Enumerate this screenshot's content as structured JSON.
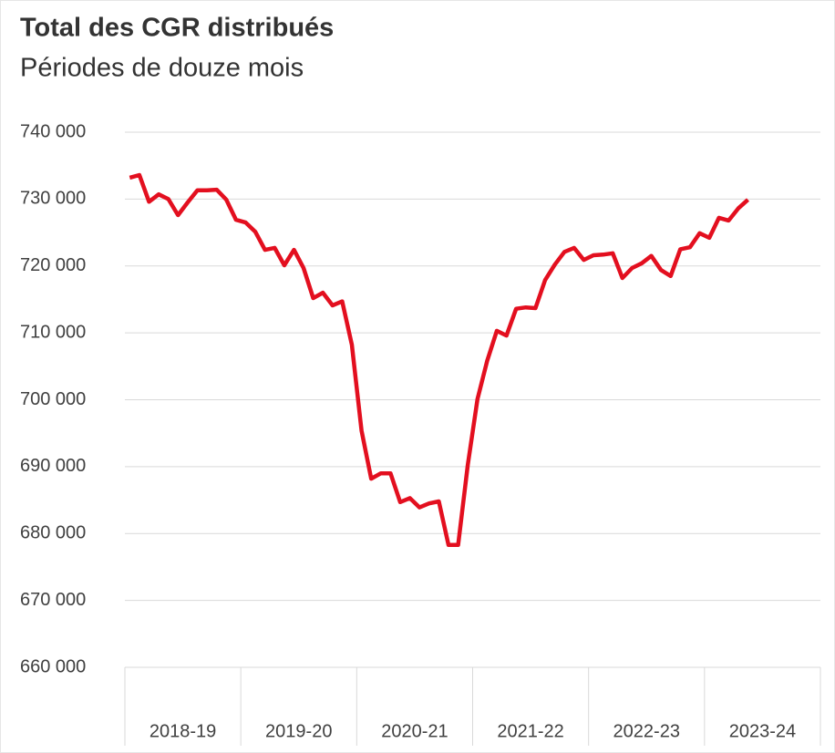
{
  "chart_data": {
    "type": "line",
    "title": "Total des CGR distribués",
    "subtitle": "Périodes de douze mois",
    "categories": [
      "2018-19",
      null,
      null,
      null,
      null,
      null,
      null,
      null,
      null,
      null,
      null,
      null,
      "2019-20",
      null,
      null,
      null,
      null,
      null,
      null,
      null,
      null,
      null,
      null,
      null,
      "2020-21",
      null,
      null,
      null,
      null,
      null,
      null,
      null,
      null,
      null,
      null,
      null,
      "2021-22",
      null,
      null,
      null,
      null,
      null,
      null,
      null,
      null,
      null,
      null,
      null,
      "2022-23",
      null,
      null,
      null,
      null,
      null,
      null,
      null,
      null,
      null,
      null,
      null,
      "2023-24",
      null,
      null,
      null,
      null,
      null,
      null,
      null,
      null,
      null,
      null,
      null
    ],
    "series": [
      {
        "name": "Total des CGR distribués",
        "color": "#e30f1f",
        "values": [
          733200,
          733600,
          729600,
          730700,
          730000,
          727600,
          729500,
          731300,
          731300,
          731400,
          729900,
          726900,
          726500,
          725100,
          722400,
          722700,
          720100,
          722400,
          719700,
          715200,
          716000,
          714100,
          714700,
          708200,
          695400,
          688200,
          689000,
          689000,
          684700,
          685300,
          683900,
          684500,
          684800,
          678300,
          678300,
          690300,
          700100,
          705800,
          710300,
          709600,
          713600,
          713800,
          713700,
          717900,
          720200,
          722100,
          722700,
          720900,
          721600,
          721700,
          721900,
          718200,
          719700,
          720400,
          721500,
          719400,
          718500,
          722500,
          722800,
          724900,
          724200,
          727200,
          726800,
          728600,
          729900,
          null,
          null,
          null,
          null,
          null,
          null,
          null
        ]
      }
    ],
    "ylim": [
      660000,
      740000
    ],
    "yticks": [
      {
        "value": 660000,
        "label": "660 000"
      },
      {
        "value": 670000,
        "label": "670 000"
      },
      {
        "value": 680000,
        "label": "680 000"
      },
      {
        "value": 690000,
        "label": "690 000"
      },
      {
        "value": 700000,
        "label": "700 000"
      },
      {
        "value": 710000,
        "label": "710 000"
      },
      {
        "value": 720000,
        "label": "720 000"
      },
      {
        "value": 730000,
        "label": "730 000"
      },
      {
        "value": 740000,
        "label": "740 000"
      }
    ],
    "grid": true
  }
}
